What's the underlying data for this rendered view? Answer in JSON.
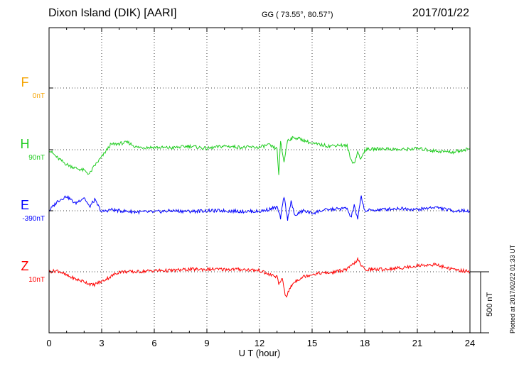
{
  "header": {
    "station": "Dixon Island (DIK)  [AARI]",
    "coords": "GG ( 73.55°,  80.57°)",
    "date": "2017/01/22"
  },
  "channels": [
    {
      "letter": "F",
      "offset": "0nT",
      "color": "#f5a300"
    },
    {
      "letter": "H",
      "offset": "90nT",
      "color": "#1fcc1f"
    },
    {
      "letter": "E",
      "offset": "-390nT",
      "color": "#0000ff"
    },
    {
      "letter": "Z",
      "offset": "10nT",
      "color": "#ff0000"
    }
  ],
  "scale_bar": "500 nT",
  "plotted_note": "Plotted at 2017/02/22 01:33 UT",
  "chart_data": {
    "type": "line",
    "xlabel": "U T (hour)",
    "xlim": [
      0,
      24
    ],
    "xticks": [
      0,
      3,
      6,
      9,
      12,
      15,
      18,
      21,
      24
    ],
    "grid": true,
    "series": [
      {
        "name": "F",
        "color": "#f5a300",
        "x": [],
        "y": []
      },
      {
        "name": "H",
        "color": "#1fcc1f",
        "x": [
          0,
          0.5,
          1,
          1.5,
          2,
          2.3,
          2.6,
          3,
          3.2,
          3.5,
          4,
          4.5,
          5,
          6,
          7,
          8,
          9,
          10,
          11,
          12,
          12.5,
          13,
          13.1,
          13.2,
          13.4,
          13.6,
          14,
          14.5,
          15,
          15.5,
          16,
          16.5,
          17,
          17.2,
          17.4,
          17.6,
          17.8,
          18,
          19,
          20,
          21,
          22,
          23,
          24
        ],
        "y": [
          0,
          -70,
          -120,
          -150,
          -170,
          -200,
          -130,
          -60,
          -20,
          40,
          50,
          60,
          20,
          20,
          15,
          30,
          10,
          30,
          20,
          20,
          40,
          5,
          -200,
          60,
          -100,
          80,
          100,
          80,
          50,
          40,
          30,
          40,
          30,
          -80,
          -110,
          -20,
          -80,
          0,
          10,
          0,
          10,
          -10,
          -20,
          10
        ]
      },
      {
        "name": "E",
        "color": "#0000ff",
        "x": [
          0,
          0.5,
          1,
          1.5,
          2,
          2.3,
          2.6,
          3,
          3.5,
          4,
          5,
          6,
          7,
          8,
          9,
          10,
          11,
          12,
          12.5,
          13,
          13.2,
          13.4,
          13.6,
          13.8,
          14,
          14.5,
          15,
          15.5,
          16,
          17,
          17.2,
          17.4,
          17.6,
          17.8,
          18,
          19,
          20,
          21,
          22,
          23,
          24
        ],
        "y": [
          0,
          80,
          120,
          60,
          110,
          30,
          90,
          -10,
          10,
          0,
          -10,
          -10,
          0,
          -5,
          0,
          0,
          -5,
          -5,
          10,
          30,
          -60,
          120,
          -70,
          80,
          -40,
          0,
          -20,
          0,
          10,
          20,
          -60,
          40,
          -70,
          120,
          0,
          10,
          20,
          10,
          30,
          0,
          0
        ]
      },
      {
        "name": "Z",
        "color": "#ff0000",
        "x": [
          0,
          0.5,
          1,
          1.5,
          2,
          2.5,
          2.8,
          3,
          3.5,
          4,
          5,
          6,
          7,
          8,
          9,
          10,
          11,
          12,
          12.5,
          13,
          13.1,
          13.3,
          13.5,
          13.8,
          14,
          14.5,
          15,
          15.5,
          16,
          17,
          17.4,
          17.6,
          17.8,
          18,
          19,
          20,
          21,
          22,
          23,
          24
        ],
        "y": [
          0,
          10,
          -30,
          -60,
          -80,
          -110,
          -90,
          -80,
          -40,
          0,
          0,
          10,
          10,
          20,
          20,
          20,
          20,
          10,
          -20,
          -40,
          -110,
          -50,
          -210,
          -120,
          -80,
          -40,
          -20,
          -10,
          -10,
          20,
          70,
          100,
          50,
          20,
          20,
          30,
          50,
          60,
          20,
          0
        ]
      }
    ],
    "scale": {
      "label": "500 nT",
      "nT": 500
    }
  }
}
